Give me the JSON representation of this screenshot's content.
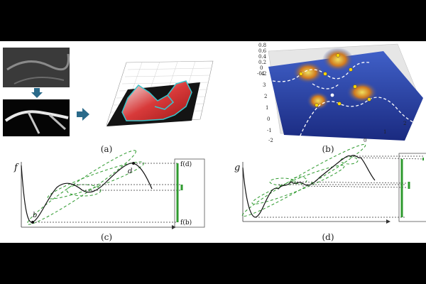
{
  "captions": {
    "a": "(a)",
    "b": "(b)",
    "c": "(c)",
    "d": "(d)"
  },
  "panel_c": {
    "axis_label": "f",
    "point_b": "b",
    "point_d": "d",
    "range_top": "f(d)",
    "range_bottom": "f(b)"
  },
  "panel_d": {
    "axis_label": "g"
  },
  "panel_b": {
    "z_ticks": [
      "0.8",
      "0.6",
      "0.4",
      "0.2",
      "0",
      "-0.2"
    ],
    "y_ticks": [
      "4",
      "3",
      "2",
      "1",
      "0",
      "-1",
      "-2"
    ],
    "x_ticks": [
      "0",
      "1",
      "2"
    ]
  },
  "colors": {
    "curve": "#111111",
    "persistence_pair": "#2e9a2e",
    "arrow": "#2a6a8a",
    "surface_red": "#d83a3a",
    "surface_cyan": "#39c6cc",
    "surface_blue": "#2240a0",
    "surface_peak": "#e0b040"
  },
  "icons": [
    "down-arrow-icon",
    "right-arrow-icon"
  ]
}
